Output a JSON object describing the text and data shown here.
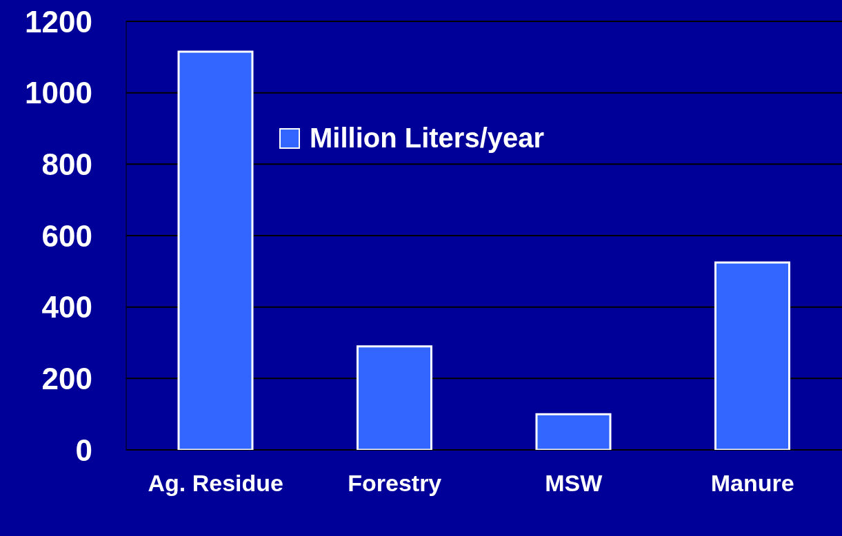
{
  "chart_data": {
    "type": "bar",
    "categories": [
      "Ag. Residue",
      "Forestry",
      "MSW",
      "Manure"
    ],
    "series": [
      {
        "name": "Million Liters/year",
        "color": "#3366ff",
        "values": [
          1115,
          290,
          100,
          525
        ]
      }
    ],
    "ylim": [
      0,
      1200
    ],
    "yticks": [
      0,
      200,
      400,
      600,
      800,
      1000,
      1200
    ],
    "grid": "y",
    "legend": "top"
  }
}
